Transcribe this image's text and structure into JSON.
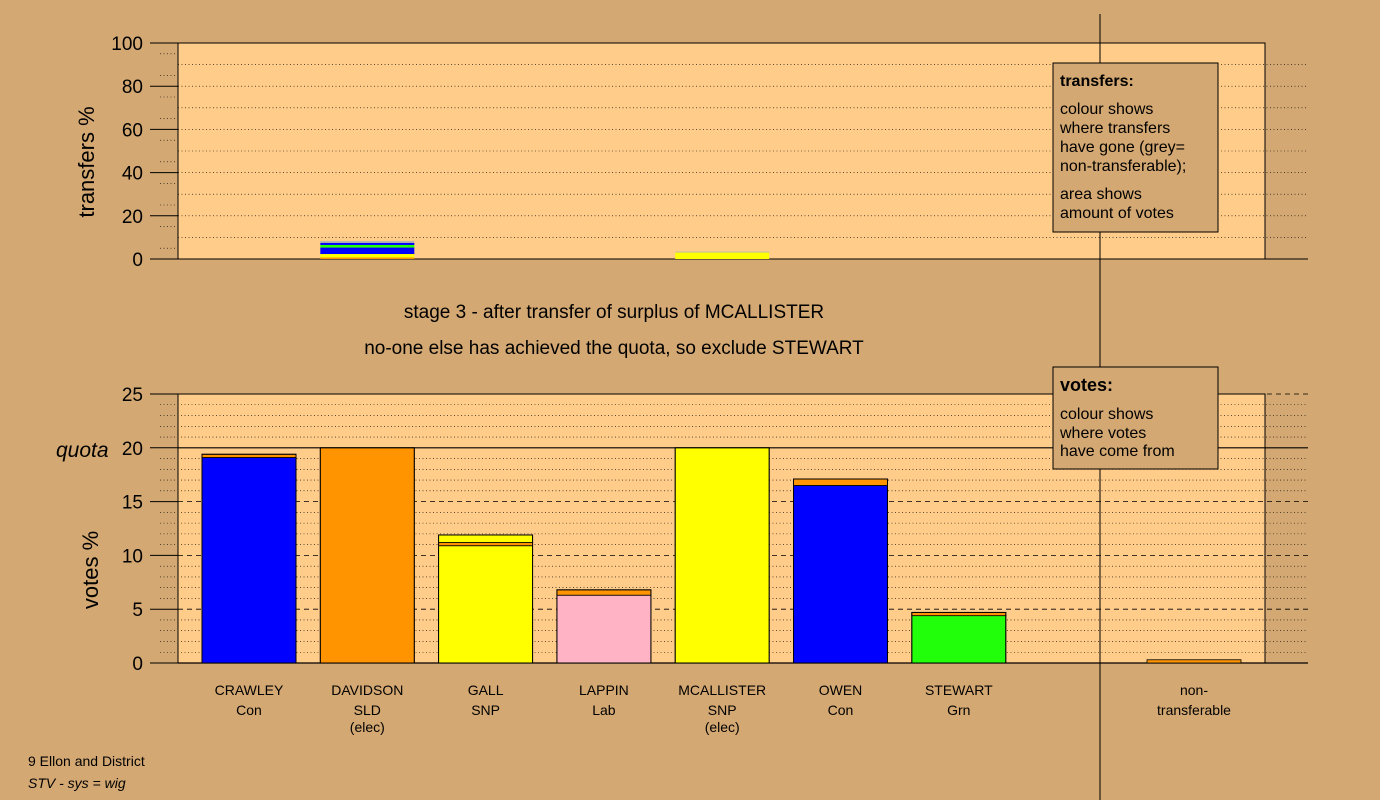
{
  "colors": {
    "background": "#d4a872",
    "plot_bg": "#ffcc8a",
    "Con": "#0000ff",
    "SLD": "#ff9400",
    "SNP": "#ffff00",
    "Lab": "#ffb3c4",
    "Grn": "#22ff0a",
    "non_transferable": "#b4b4b4"
  },
  "stage_line1": "stage 3 - after transfer of surplus of MCALLISTER",
  "stage_line2": "no-one else has achieved the quota, so exclude STEWART",
  "footer": {
    "line1": "9 Ellon and District",
    "line2": "STV - sys = wig"
  },
  "legend_transfers": {
    "title": "transfers:",
    "lines": [
      "colour shows",
      "where transfers",
      "have gone (grey=",
      "non-transferable);"
    ],
    "lines2": [
      "area shows",
      "amount of votes"
    ]
  },
  "legend_votes": {
    "title": "votes:",
    "lines": [
      "colour shows",
      "where votes",
      "have come from"
    ]
  },
  "chart_data": [
    {
      "type": "bar",
      "ylabel": "transfers %",
      "ylim": [
        0,
        100
      ],
      "yticks": [
        0,
        20,
        40,
        60,
        80,
        100
      ],
      "grid": "dotted every 10",
      "bars": [
        {
          "index": 1,
          "segments": [
            {
              "party": "SLD",
              "value": 0.7
            },
            {
              "party": "SNP",
              "value": 1.6
            },
            {
              "party": "Con",
              "value": 3.0
            },
            {
              "party": "Grn",
              "value": 1.2
            },
            {
              "party": "Con",
              "value": 1.0
            },
            {
              "party": "non_transferable",
              "value": 0.8
            }
          ]
        },
        {
          "index": 4,
          "segments": [
            {
              "party": "SNP",
              "value": 3.0
            },
            {
              "party": "non_transferable",
              "value": 0.4
            }
          ]
        }
      ]
    },
    {
      "type": "bar",
      "ylabel": "votes %",
      "ylim": [
        0,
        25
      ],
      "yticks": [
        0,
        5,
        10,
        15,
        20,
        25
      ],
      "quota": 20,
      "quota_label": "quota",
      "grid": "dotted every 1, dashed every 5",
      "categories": [
        {
          "name": "CRAWLEY",
          "party": "Con",
          "extra": "",
          "segments": [
            {
              "party": "Con",
              "value": 19.1
            },
            {
              "party": "SLD",
              "value": 0.3
            }
          ]
        },
        {
          "name": "DAVIDSON",
          "party": "SLD",
          "extra": "(elec)",
          "segments": [
            {
              "party": "SLD",
              "value": 20.0
            }
          ]
        },
        {
          "name": "GALL",
          "party": "SNP",
          "extra": "",
          "segments": [
            {
              "party": "SNP",
              "value": 10.9
            },
            {
              "party": "SLD",
              "value": 0.3
            },
            {
              "party": "SNP",
              "value": 0.7
            }
          ]
        },
        {
          "name": "LAPPIN",
          "party": "Lab",
          "extra": "",
          "segments": [
            {
              "party": "Lab",
              "value": 6.3
            },
            {
              "party": "SLD",
              "value": 0.5
            }
          ]
        },
        {
          "name": "MCALLISTER",
          "party": "SNP",
          "extra": "(elec)",
          "segments": [
            {
              "party": "SNP",
              "value": 20.0
            }
          ]
        },
        {
          "name": "OWEN",
          "party": "Con",
          "extra": "",
          "segments": [
            {
              "party": "Con",
              "value": 16.5
            },
            {
              "party": "SLD",
              "value": 0.6
            }
          ]
        },
        {
          "name": "STEWART",
          "party": "Grn",
          "extra": "",
          "segments": [
            {
              "party": "Grn",
              "value": 4.4
            },
            {
              "party": "SLD",
              "value": 0.3
            }
          ]
        }
      ],
      "non_transferable": {
        "label1": "non-",
        "label2": "transferable",
        "segments": [
          {
            "party": "SLD",
            "value": 0.3
          }
        ]
      }
    }
  ]
}
